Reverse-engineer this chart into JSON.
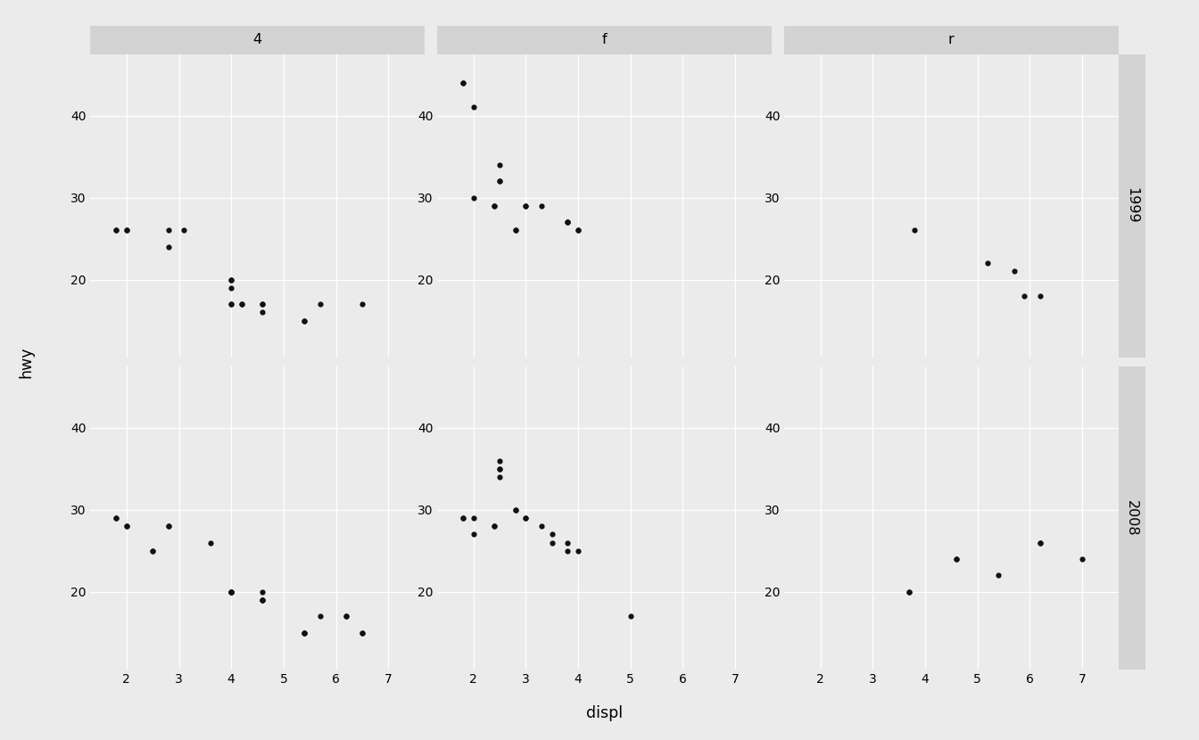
{
  "title": "",
  "xlabel": "displ",
  "ylabel": "hwy",
  "col_labels": [
    "4",
    "f",
    "r"
  ],
  "row_labels": [
    "1999",
    "2008"
  ],
  "bg_color": "#EBEBEB",
  "panel_bg": "#EBEBEB",
  "strip_bg": "#D3D3D3",
  "grid_color": "#FFFFFF",
  "point_color": "#111111",
  "point_size": 20,
  "xlim": [
    1.3,
    7.7
  ],
  "ylim": [
    10.5,
    47.5
  ],
  "xticks": [
    2,
    3,
    4,
    5,
    6,
    7
  ],
  "yticks": [
    20,
    30,
    40
  ],
  "data": {
    "4_1999": {
      "displ": [
        1.8,
        1.8,
        2.0,
        2.0,
        2.8,
        2.8,
        3.1,
        4.0,
        4.0,
        4.0,
        4.0,
        4.0,
        4.2,
        4.2,
        4.6,
        4.6,
        4.6,
        5.4,
        5.4,
        5.7,
        6.5
      ],
      "hwy": [
        26,
        26,
        26,
        26,
        24,
        26,
        26,
        20,
        19,
        20,
        17,
        17,
        17,
        17,
        17,
        17,
        16,
        15,
        15,
        17,
        17
      ]
    },
    "4_2008": {
      "displ": [
        1.8,
        1.8,
        2.0,
        2.0,
        2.5,
        2.5,
        2.8,
        2.8,
        3.6,
        4.0,
        4.0,
        4.0,
        4.0,
        4.0,
        4.6,
        4.6,
        4.6,
        4.6,
        5.4,
        5.4,
        5.4,
        5.7,
        6.2,
        6.2,
        6.5,
        6.5
      ],
      "hwy": [
        29,
        29,
        28,
        28,
        25,
        25,
        28,
        28,
        26,
        20,
        20,
        20,
        20,
        20,
        19,
        19,
        20,
        19,
        15,
        15,
        15,
        17,
        17,
        17,
        15,
        15
      ]
    },
    "f_1999": {
      "displ": [
        1.8,
        1.8,
        2.0,
        2.0,
        2.4,
        2.4,
        2.5,
        2.5,
        2.5,
        2.8,
        2.8,
        3.0,
        3.0,
        3.3,
        3.8,
        3.8,
        3.8,
        4.0,
        4.0
      ],
      "hwy": [
        44,
        44,
        41,
        30,
        29,
        29,
        34,
        32,
        32,
        26,
        26,
        29,
        29,
        29,
        27,
        27,
        27,
        26,
        26
      ]
    },
    "f_2008": {
      "displ": [
        1.8,
        1.8,
        2.0,
        2.0,
        2.4,
        2.4,
        2.5,
        2.5,
        2.5,
        2.5,
        2.8,
        2.8,
        3.0,
        3.0,
        3.3,
        3.5,
        3.5,
        3.8,
        3.8,
        4.0,
        5.0
      ],
      "hwy": [
        29,
        29,
        27,
        29,
        28,
        28,
        34,
        35,
        35,
        36,
        30,
        30,
        29,
        29,
        28,
        26,
        27,
        25,
        26,
        25,
        17
      ]
    },
    "r_1999": {
      "displ": [
        3.8,
        5.2,
        5.7,
        5.9,
        6.2
      ],
      "hwy": [
        26,
        22,
        21,
        18,
        18
      ]
    },
    "r_2008": {
      "displ": [
        3.7,
        3.7,
        4.6,
        4.6,
        5.4,
        6.2,
        6.2,
        7.0
      ],
      "hwy": [
        20,
        20,
        24,
        24,
        22,
        26,
        26,
        24
      ]
    }
  }
}
